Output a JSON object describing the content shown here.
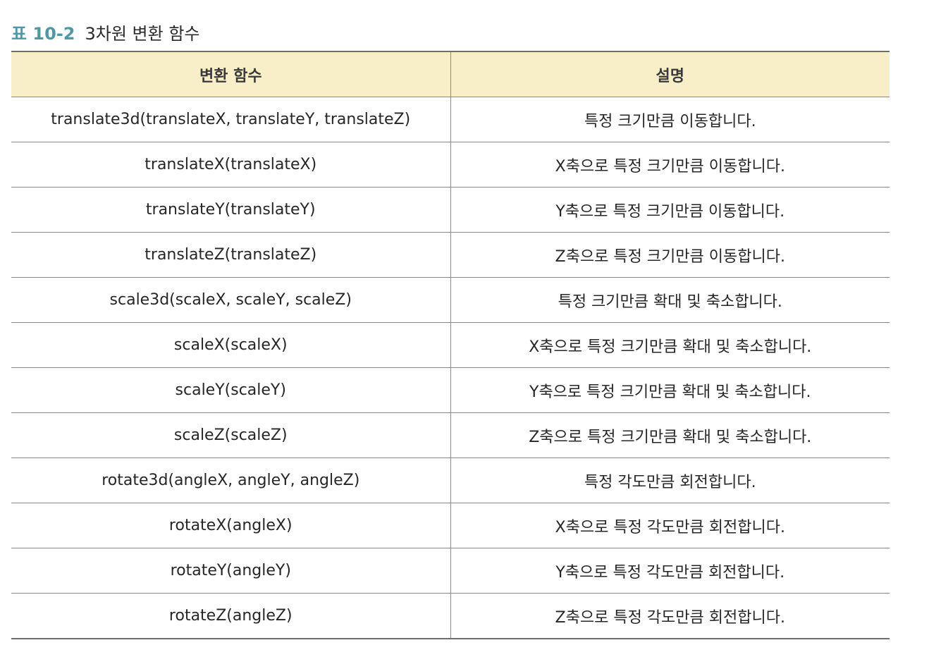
{
  "caption": {
    "number": "표 10-2",
    "title": "3차원 변환 함수"
  },
  "table": {
    "headers": [
      "변환 함수",
      "설명"
    ],
    "rows": [
      [
        "translate3d(translateX, translateY, translateZ)",
        "특정 크기만큼 이동합니다."
      ],
      [
        "translateX(translateX)",
        "X축으로 특정 크기만큼 이동합니다."
      ],
      [
        "translateY(translateY)",
        "Y축으로 특정 크기만큼 이동합니다."
      ],
      [
        "translateZ(translateZ)",
        "Z축으로 특정 크기만큼 이동합니다."
      ],
      [
        "scale3d(scaleX, scaleY, scaleZ)",
        "특정 크기만큼 확대 및 축소합니다."
      ],
      [
        "scaleX(scaleX)",
        "X축으로 특정 크기만큼 확대 및 축소합니다."
      ],
      [
        "scaleY(scaleY)",
        "Y축으로 특정 크기만큼 확대 및 축소합니다."
      ],
      [
        "scaleZ(scaleZ)",
        "Z축으로 특정 크기만큼 확대 및 축소합니다."
      ],
      [
        "rotate3d(angleX, angleY, angleZ)",
        "특정 각도만큼 회전합니다."
      ],
      [
        "rotateX(angleX)",
        "X축으로 특정 각도만큼 회전합니다."
      ],
      [
        "rotateY(angleY)",
        "Y축으로 특정 각도만큼 회전합니다."
      ],
      [
        "rotateZ(angleZ)",
        "Z축으로 특정 각도만큼 회전합니다."
      ]
    ]
  },
  "colors": {
    "caption_accent": "#4a9aa6",
    "header_background": "#f8efc9"
  }
}
